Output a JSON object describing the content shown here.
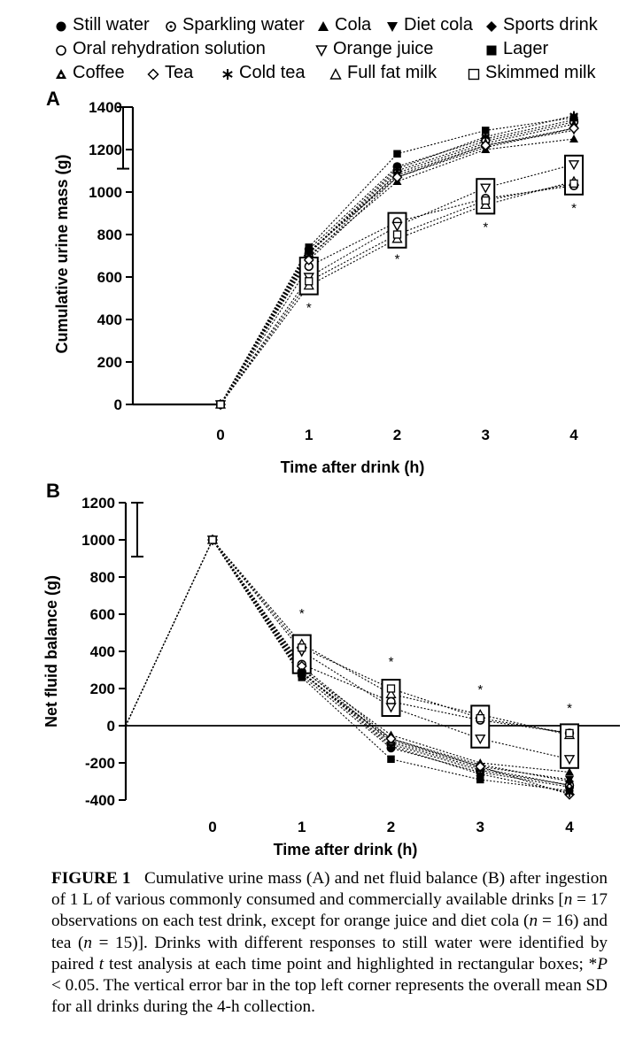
{
  "legend": [
    {
      "label": "Still water",
      "symbol": "circle-filled"
    },
    {
      "label": "Sparkling water",
      "symbol": "circle-dot"
    },
    {
      "label": "Cola",
      "symbol": "triangle-filled"
    },
    {
      "label": "Diet cola",
      "symbol": "triangle-down-filled"
    },
    {
      "label": "Sports drink",
      "symbol": "diamond-filled"
    },
    {
      "label": "Oral rehydration solution",
      "symbol": "circle-open"
    },
    {
      "label": "Orange juice",
      "symbol": "triangle-down-open"
    },
    {
      "label": "Lager",
      "symbol": "square-filled"
    },
    {
      "label": "Coffee",
      "symbol": "triangle-dot"
    },
    {
      "label": "Tea",
      "symbol": "diamond-open"
    },
    {
      "label": "Cold tea",
      "symbol": "asterisk"
    },
    {
      "label": "Full fat milk",
      "symbol": "triangle-open"
    },
    {
      "label": "Skimmed milk",
      "symbol": "square-open"
    }
  ],
  "chart_data": [
    {
      "type": "line",
      "panel": "A",
      "title": "",
      "xlabel": "Time after drink (h)",
      "ylabel": "Cumulative urine mass (g)",
      "x": [
        0,
        1,
        2,
        3,
        4
      ],
      "xticks": [
        "0",
        "1",
        "2",
        "3",
        "4"
      ],
      "yticks": [
        "0",
        "200",
        "400",
        "600",
        "800",
        "1000",
        "1200",
        "1400"
      ],
      "ylim": [
        0,
        1400
      ],
      "error_bar_sd": [
        1110,
        1400
      ],
      "significance_marker": "*",
      "significant_y": [
        null,
        460,
        690,
        840,
        930
      ],
      "series": [
        {
          "name": "Still water",
          "values": [
            0,
            730,
            1120,
            1250,
            1340
          ]
        },
        {
          "name": "Sparkling water",
          "values": [
            0,
            710,
            1100,
            1240,
            1330
          ]
        },
        {
          "name": "Cola",
          "values": [
            0,
            700,
            1050,
            1200,
            1250
          ]
        },
        {
          "name": "Diet cola",
          "values": [
            0,
            720,
            1080,
            1220,
            1290
          ]
        },
        {
          "name": "Sports drink",
          "values": [
            0,
            720,
            1070,
            1210,
            1300
          ]
        },
        {
          "name": "Oral rehydration solution",
          "values": [
            0,
            650,
            860,
            970,
            1030
          ]
        },
        {
          "name": "Orange juice",
          "values": [
            0,
            600,
            840,
            1020,
            1130
          ]
        },
        {
          "name": "Lager",
          "values": [
            0,
            740,
            1180,
            1290,
            1350
          ]
        },
        {
          "name": "Coffee",
          "values": [
            0,
            690,
            1090,
            1230,
            1320
          ]
        },
        {
          "name": "Tea",
          "values": [
            0,
            680,
            1070,
            1220,
            1300
          ]
        },
        {
          "name": "Cold tea",
          "values": [
            0,
            715,
            1110,
            1260,
            1360
          ]
        },
        {
          "name": "Full fat milk",
          "values": [
            0,
            560,
            780,
            940,
            1050
          ]
        },
        {
          "name": "Skimmed milk",
          "values": [
            0,
            580,
            800,
            960,
            1040
          ]
        }
      ]
    },
    {
      "type": "line",
      "panel": "B",
      "title": "",
      "xlabel": "Time after drink (h)",
      "ylabel": "Net fluid balance (g)",
      "x": [
        0,
        1,
        2,
        3,
        4
      ],
      "xticks": [
        "0",
        "1",
        "2",
        "3",
        "4"
      ],
      "yticks": [
        "-400",
        "-200",
        "0",
        "200",
        "400",
        "600",
        "800",
        "1000",
        "1200"
      ],
      "ylim": [
        -400,
        1200
      ],
      "error_bar_sd": [
        910,
        1200
      ],
      "significance_marker": "*",
      "significant_y": [
        null,
        610,
        350,
        200,
        100
      ],
      "series": [
        {
          "name": "Still water",
          "values": [
            1000,
            270,
            -120,
            -250,
            -330
          ]
        },
        {
          "name": "Sparkling water",
          "values": [
            1000,
            290,
            -100,
            -240,
            -320
          ]
        },
        {
          "name": "Cola",
          "values": [
            1000,
            300,
            -50,
            -200,
            -250
          ]
        },
        {
          "name": "Diet cola",
          "values": [
            1000,
            280,
            -80,
            -220,
            -290
          ]
        },
        {
          "name": "Sports drink",
          "values": [
            1000,
            280,
            -70,
            -210,
            -300
          ]
        },
        {
          "name": "Oral rehydration solution",
          "values": [
            1000,
            330,
            130,
            30,
            -40
          ]
        },
        {
          "name": "Orange juice",
          "values": [
            1000,
            400,
            100,
            -70,
            -180
          ]
        },
        {
          "name": "Lager",
          "values": [
            1000,
            260,
            -180,
            -290,
            -350
          ]
        },
        {
          "name": "Coffee",
          "values": [
            1000,
            310,
            -90,
            -230,
            -320
          ]
        },
        {
          "name": "Tea",
          "values": [
            1000,
            320,
            -70,
            -220,
            -370
          ]
        },
        {
          "name": "Cold tea",
          "values": [
            1000,
            285,
            -110,
            -260,
            -360
          ]
        },
        {
          "name": "Full fat milk",
          "values": [
            1000,
            440,
            170,
            60,
            -50
          ]
        },
        {
          "name": "Skimmed milk",
          "values": [
            1000,
            420,
            200,
            40,
            -40
          ]
        }
      ]
    }
  ],
  "caption": {
    "label": "FIGURE 1",
    "text_1": "Cumulative urine mass (A) and net fluid balance (B) after ingestion of 1 L of various commonly consumed and commercially available drinks [",
    "n_italic": "n",
    "text_2": " = 17 observations on each test drink, except for orange juice and diet cola (",
    "n2_italic": "n",
    "text_3": " = 16) and tea (",
    "n3_italic": "n",
    "text_4": " = 15)]. Drinks with different responses to still water were identified by paired ",
    "t_italic": "t",
    "text_5": " test analysis at each time point and highlighted in rectangular boxes; *",
    "p_italic": "P",
    "text_6": " < 0.05. The vertical error bar in the top left corner represents the overall mean SD for all drinks during the 4-h collection."
  }
}
